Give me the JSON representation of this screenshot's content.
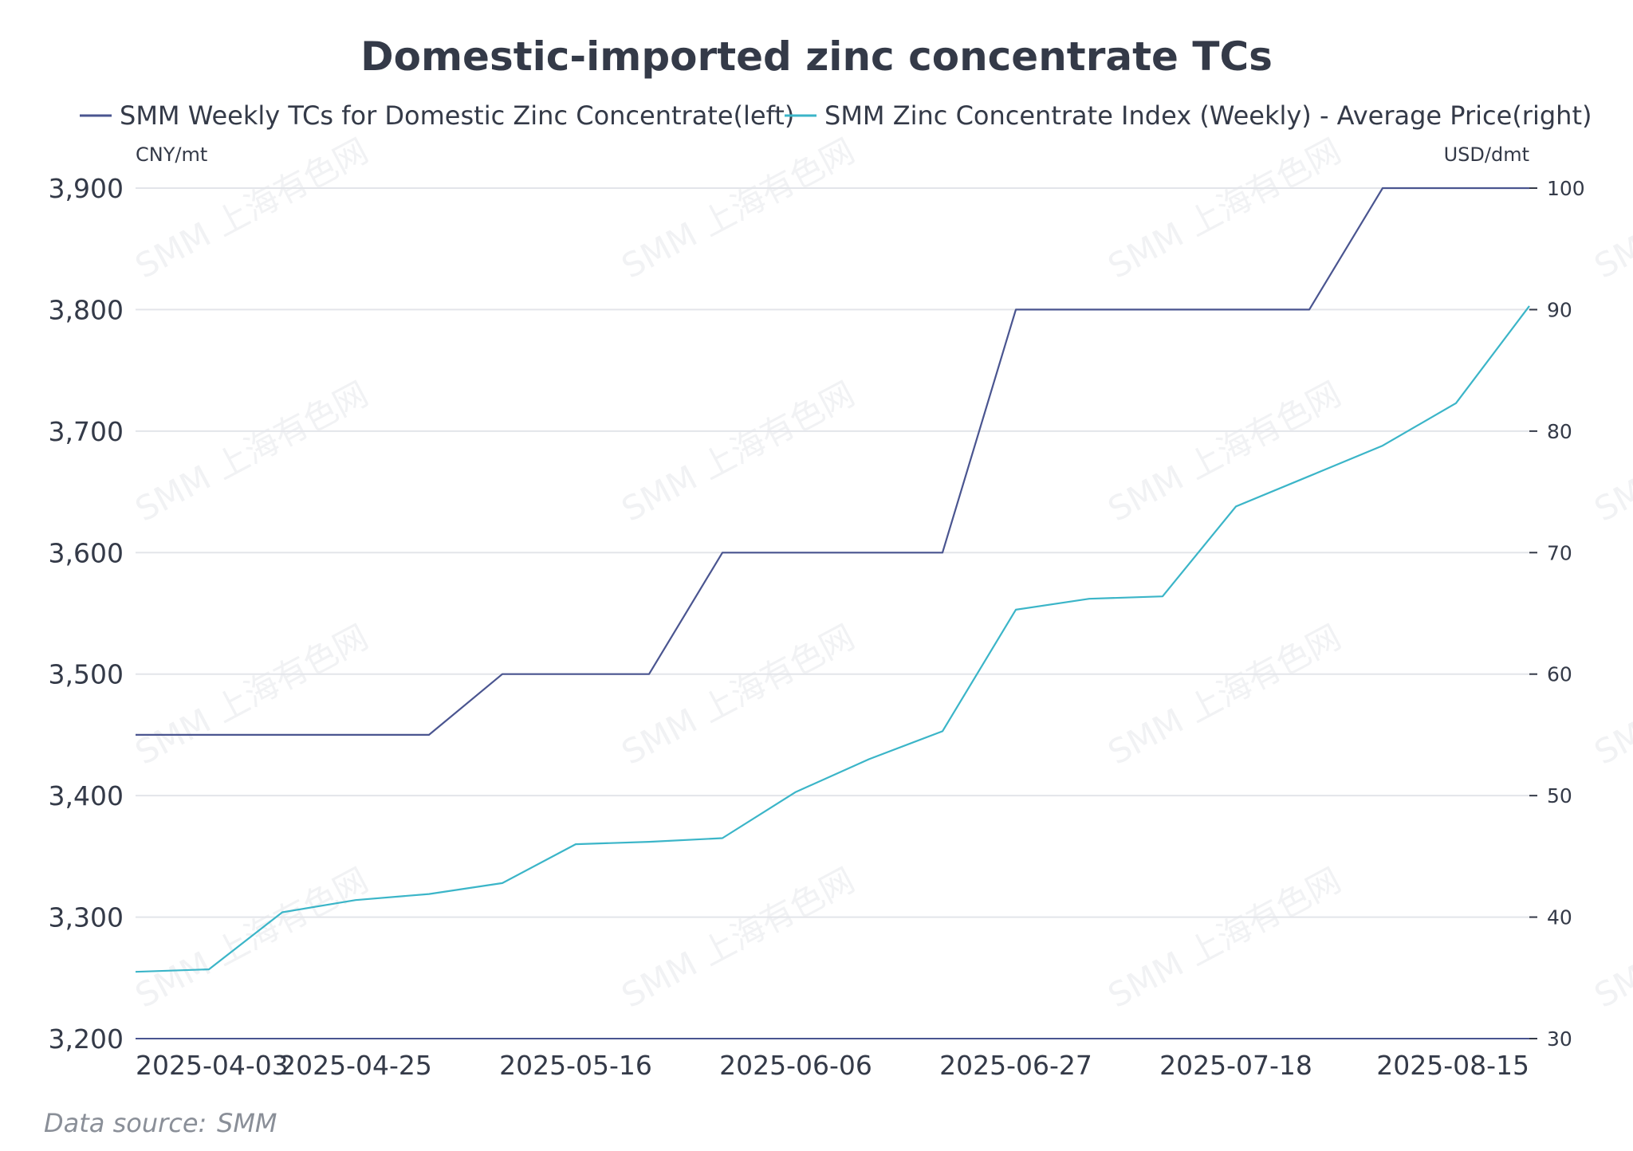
{
  "chart_data": {
    "type": "line",
    "title": "Domestic-imported zinc concentrate TCs",
    "left_unit": "CNY/mt",
    "right_unit": "USD/dmt",
    "source_label": "Data source:",
    "source_name": "SMM",
    "watermark_text": "SMM 上海有色网",
    "x_tick_labels": [
      "2025-04-03",
      "2025-04-25",
      "2025-05-16",
      "2025-06-06",
      "2025-06-27",
      "2025-07-18",
      "2025-08-15"
    ],
    "x_tick_indices": [
      0,
      3,
      6,
      9,
      12,
      15,
      19
    ],
    "y_left": {
      "ticks": [
        "3,200",
        "3,300",
        "3,400",
        "3,500",
        "3,600",
        "3,700",
        "3,800",
        "3,900"
      ],
      "range": [
        3200,
        3900
      ]
    },
    "y_right": {
      "ticks": [
        "30",
        "40",
        "50",
        "60",
        "70",
        "80",
        "90",
        "100"
      ],
      "range": [
        30,
        100
      ]
    },
    "series": [
      {
        "name": "SMM Weekly TCs for Domestic Zinc Concentrate(left)",
        "axis": "left",
        "color": "#4a5590",
        "values": [
          3450,
          3450,
          3450,
          3450,
          3450,
          3500,
          3500,
          3500,
          3600,
          3600,
          3600,
          3600,
          3800,
          3800,
          3800,
          3800,
          3800,
          3900,
          3900,
          3900
        ]
      },
      {
        "name": "SMM Zinc Concentrate Index (Weekly) - Average Price(right)",
        "axis": "right",
        "color": "#3bb5c8",
        "values": [
          35.5,
          35.7,
          40.4,
          41.4,
          41.9,
          42.8,
          46.0,
          46.2,
          46.5,
          50.3,
          53.0,
          55.3,
          65.3,
          66.2,
          66.4,
          73.8,
          76.3,
          78.8,
          82.3,
          90.3
        ]
      }
    ]
  }
}
